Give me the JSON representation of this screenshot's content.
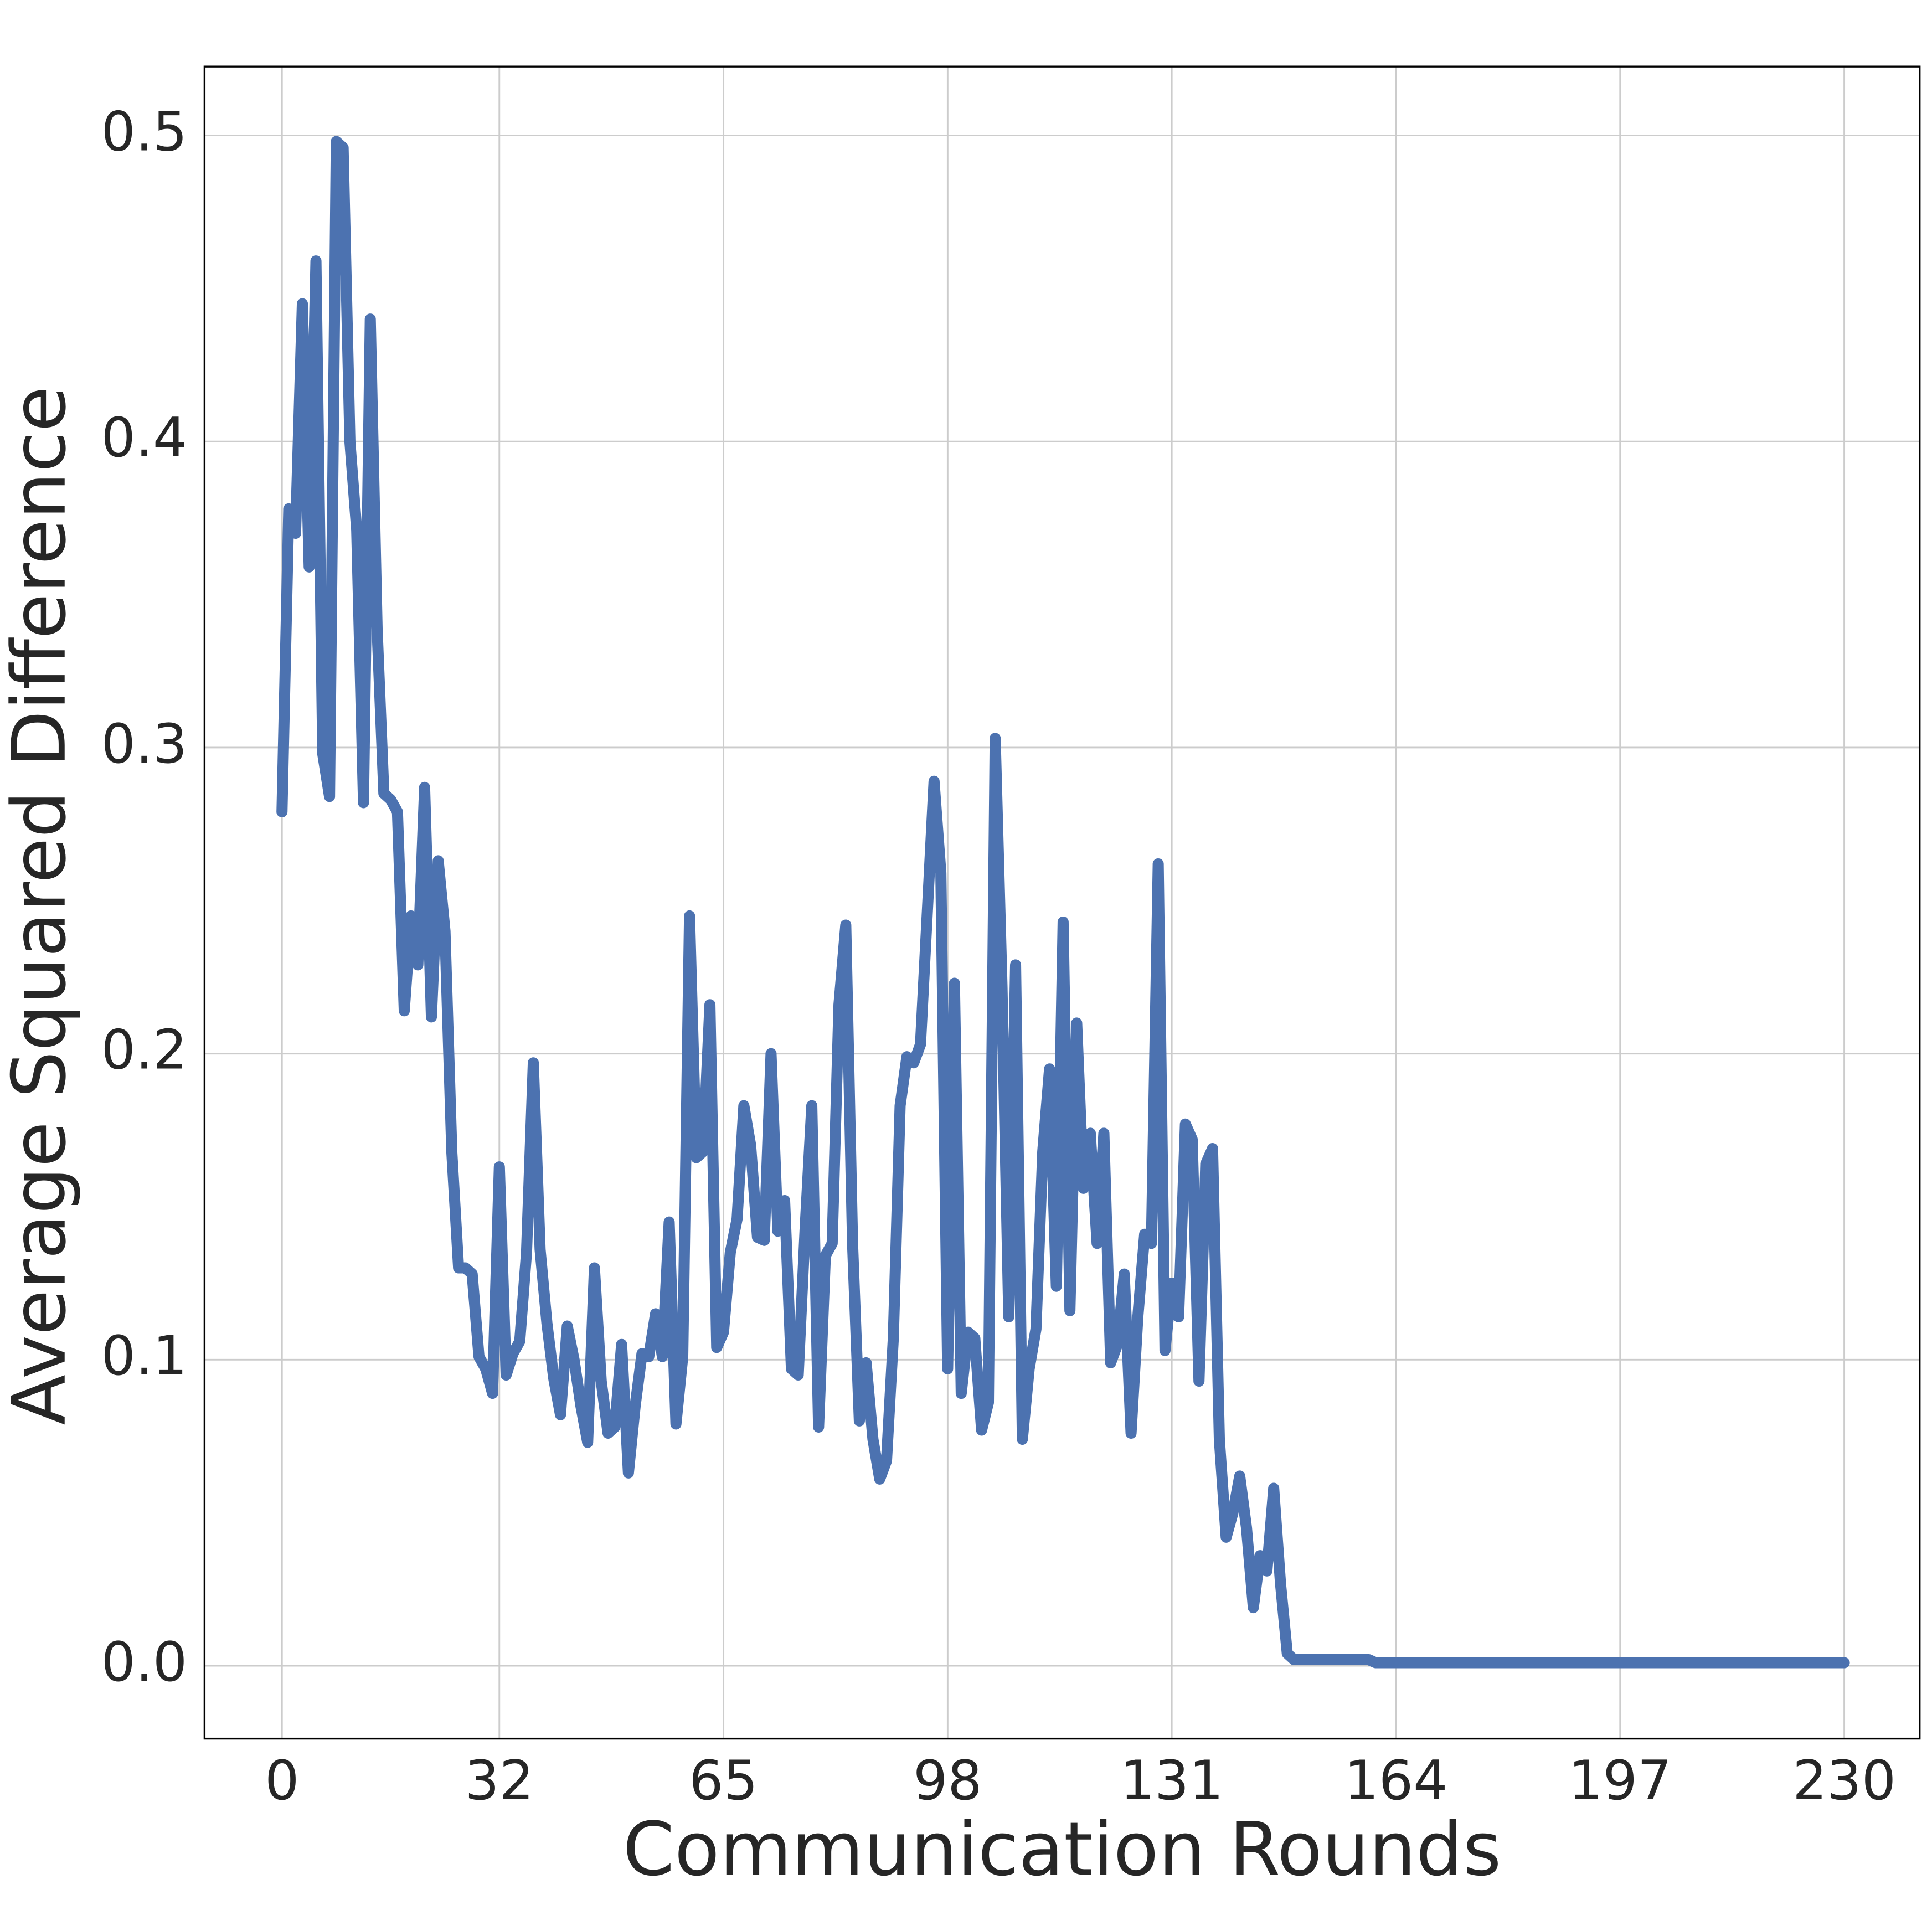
{
  "chart_data": {
    "type": "line",
    "xlabel": "Communication Rounds",
    "ylabel": "Average Squared Difference",
    "xlim": [
      -11.4,
      241.1
    ],
    "ylim": [
      -0.0238,
      0.5225
    ],
    "xticks": [
      0,
      32,
      65,
      98,
      131,
      164,
      197,
      230
    ],
    "yticks": [
      {
        "value": 0,
        "label": "0.0"
      },
      0.1,
      0.2,
      0.3,
      0.4,
      0.5
    ],
    "grid": true,
    "series": [
      {
        "color": "#4c72b0",
        "x": [
          0,
          1,
          2,
          3,
          4,
          5,
          6,
          7,
          8,
          9,
          10,
          11,
          12,
          13,
          14,
          15,
          16,
          17,
          18,
          19,
          20,
          21,
          22,
          23,
          24,
          25,
          26,
          27,
          28,
          29,
          30,
          31,
          32,
          33,
          34,
          35,
          36,
          37,
          38,
          39,
          40,
          41,
          42,
          43,
          44,
          45,
          46,
          47,
          48,
          49,
          50,
          51,
          52,
          53,
          54,
          55,
          56,
          57,
          58,
          59,
          60,
          61,
          62,
          63,
          64,
          65,
          66,
          67,
          68,
          69,
          70,
          71,
          72,
          73,
          74,
          75,
          76,
          77,
          78,
          79,
          80,
          81,
          82,
          83,
          84,
          85,
          86,
          87,
          88,
          89,
          90,
          91,
          92,
          93,
          94,
          95,
          96,
          97,
          98,
          99,
          100,
          101,
          102,
          103,
          104,
          105,
          106,
          107,
          108,
          109,
          110,
          111,
          112,
          113,
          114,
          115,
          116,
          117,
          118,
          119,
          120,
          121,
          122,
          123,
          124,
          125,
          126,
          127,
          128,
          129,
          130,
          131,
          132,
          133,
          134,
          135,
          136,
          137,
          138,
          139,
          140,
          141,
          142,
          143,
          144,
          145,
          146,
          147,
          148,
          149,
          150,
          151,
          152,
          153,
          154,
          155,
          156,
          157,
          158,
          159,
          160,
          161,
          162,
          163,
          164,
          165,
          166,
          167,
          168,
          169,
          170,
          171,
          172,
          173,
          174,
          175,
          176,
          177,
          178,
          179,
          180,
          181,
          182,
          183,
          184,
          185,
          186,
          187,
          188,
          189,
          190,
          191,
          192,
          193,
          194,
          195,
          196,
          197,
          198,
          199,
          200,
          201,
          202,
          203,
          204,
          205,
          206,
          207,
          208,
          209,
          210,
          211,
          212,
          213,
          214,
          215,
          216,
          217,
          218,
          219,
          220,
          221,
          222,
          223,
          224,
          225,
          226,
          227,
          228,
          229,
          230
        ],
        "values": [
          0.279,
          0.378,
          0.37,
          0.445,
          0.359,
          0.459,
          0.298,
          0.284,
          0.498,
          0.496,
          0.4,
          0.371,
          0.282,
          0.44,
          0.339,
          0.285,
          0.283,
          0.279,
          0.214,
          0.245,
          0.229,
          0.287,
          0.212,
          0.263,
          0.24,
          0.168,
          0.13,
          0.13,
          0.128,
          0.101,
          0.097,
          0.089,
          0.163,
          0.095,
          0.102,
          0.106,
          0.135,
          0.197,
          0.136,
          0.112,
          0.094,
          0.082,
          0.111,
          0.1,
          0.085,
          0.073,
          0.13,
          0.093,
          0.076,
          0.078,
          0.105,
          0.063,
          0.085,
          0.102,
          0.101,
          0.115,
          0.101,
          0.145,
          0.079,
          0.101,
          0.245,
          0.166,
          0.168,
          0.216,
          0.104,
          0.109,
          0.135,
          0.146,
          0.183,
          0.17,
          0.14,
          0.139,
          0.2,
          0.142,
          0.152,
          0.097,
          0.095,
          0.142,
          0.183,
          0.078,
          0.134,
          0.138,
          0.216,
          0.242,
          0.138,
          0.08,
          0.099,
          0.074,
          0.061,
          0.067,
          0.107,
          0.183,
          0.199,
          0.197,
          0.203,
          0.246,
          0.289,
          0.259,
          0.097,
          0.223,
          0.089,
          0.109,
          0.107,
          0.077,
          0.086,
          0.303,
          0.222,
          0.114,
          0.229,
          0.074,
          0.097,
          0.11,
          0.168,
          0.195,
          0.124,
          0.243,
          0.116,
          0.21,
          0.156,
          0.174,
          0.138,
          0.174,
          0.099,
          0.105,
          0.128,
          0.076,
          0.114,
          0.141,
          0.138,
          0.262,
          0.103,
          0.125,
          0.114,
          0.177,
          0.172,
          0.093,
          0.164,
          0.169,
          0.074,
          0.042,
          0.05,
          0.062,
          0.045,
          0.019,
          0.036,
          0.031,
          0.058,
          0.027,
          0.004,
          0.002,
          0.002,
          0.002,
          0.002,
          0.002,
          0.002,
          0.002,
          0.002,
          0.002,
          0.002,
          0.002,
          0.002,
          0.001,
          0.001,
          0.001,
          0.001,
          0.001,
          0.001,
          0.001,
          0.001,
          0.001,
          0.001,
          0.001,
          0.001,
          0.001,
          0.001,
          0.001,
          0.001,
          0.001,
          0.001,
          0.001,
          0.001,
          0.001,
          0.001,
          0.001,
          0.001,
          0.001,
          0.001,
          0.001,
          0.001,
          0.001,
          0.001,
          0.001,
          0.001,
          0.001,
          0.001,
          0.001,
          0.001,
          0.001,
          0.001,
          0.001,
          0.001,
          0.001,
          0.001,
          0.001,
          0.001,
          0.001,
          0.001,
          0.001,
          0.001,
          0.001,
          0.001,
          0.001,
          0.001,
          0.001,
          0.001,
          0.001,
          0.001,
          0.001,
          0.001,
          0.001,
          0.001,
          0.001,
          0.001,
          0.001,
          0.001,
          0.001,
          0.001,
          0.001,
          0.001,
          0.001,
          0.001
        ]
      }
    ]
  }
}
